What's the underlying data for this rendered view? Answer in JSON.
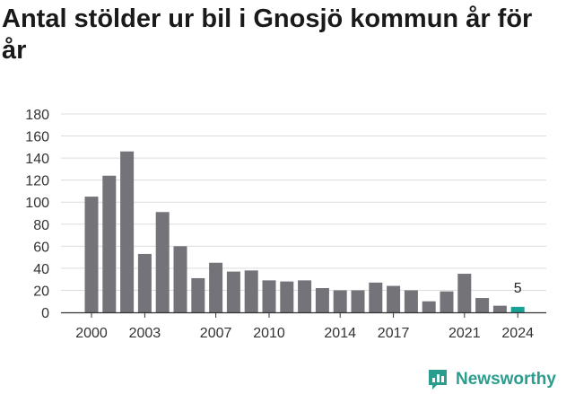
{
  "chart_data": {
    "type": "bar",
    "title": "Antal stölder ur bil i Gnosjö kommun år för år",
    "xlabel": "",
    "ylabel": "",
    "ylim": [
      0,
      180
    ],
    "yticks": [
      0,
      20,
      40,
      60,
      80,
      100,
      120,
      140,
      160,
      180
    ],
    "xtick_labels": [
      "2000",
      "2003",
      "2007",
      "2010",
      "2014",
      "2017",
      "2021",
      "2024"
    ],
    "categories": [
      "2000",
      "2001",
      "2002",
      "2003",
      "2004",
      "2005",
      "2006",
      "2007",
      "2008",
      "2009",
      "2010",
      "2011",
      "2012",
      "2013",
      "2014",
      "2015",
      "2016",
      "2017",
      "2018",
      "2019",
      "2020",
      "2021",
      "2022",
      "2023",
      "2024"
    ],
    "values": [
      105,
      124,
      146,
      53,
      91,
      60,
      31,
      45,
      37,
      38,
      29,
      28,
      29,
      22,
      20,
      20,
      27,
      24,
      20,
      10,
      19,
      35,
      13,
      6,
      5
    ],
    "highlight_index": 24,
    "data_labels": [
      {
        "index": 24,
        "text": "5"
      }
    ],
    "grid": true,
    "colors": {
      "bar": "#747379",
      "highlight": "#1aa094",
      "grid": "#dcdcdc",
      "axis": "#333333"
    }
  },
  "brand": {
    "name": "Newsworthy",
    "color": "#2a9d8f"
  }
}
